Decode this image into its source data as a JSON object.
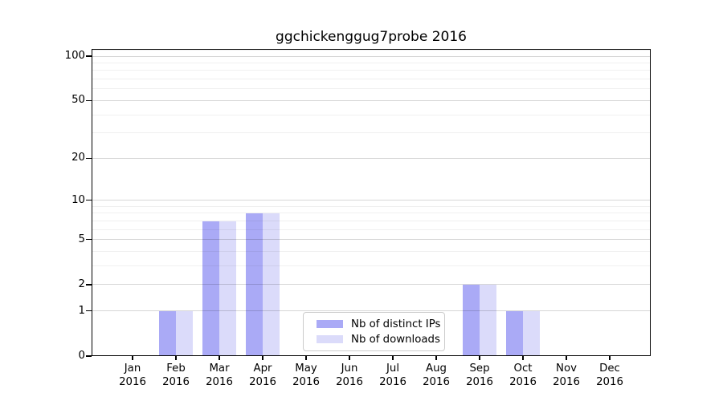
{
  "title": "ggchickenggug7probe 2016",
  "chart_data": {
    "type": "bar",
    "title": "ggchickenggug7probe 2016",
    "categories": [
      "Jan",
      "Feb",
      "Mar",
      "Apr",
      "May",
      "Jun",
      "Jul",
      "Aug",
      "Sep",
      "Oct",
      "Nov",
      "Dec"
    ],
    "year": "2016",
    "series": [
      {
        "name": "Nb of distinct IPs",
        "color": "#aaaaf6",
        "values": [
          0,
          1,
          7,
          8,
          0,
          0,
          0,
          0,
          2,
          1,
          0,
          0
        ]
      },
      {
        "name": "Nb of downloads",
        "color": "#dbdbfa",
        "values": [
          0,
          1,
          7,
          8,
          0,
          0,
          0,
          0,
          2,
          1,
          0,
          0
        ]
      }
    ],
    "xlabel": "",
    "ylabel": "",
    "yscale": "log1p",
    "ylim": [
      0,
      112
    ],
    "yticks": [
      0,
      1,
      2,
      5,
      10,
      20,
      50,
      100
    ],
    "minor_yticks": [
      3,
      4,
      6,
      7,
      8,
      9,
      30,
      40,
      60,
      70,
      80,
      90,
      110
    ],
    "grid": true,
    "legend_position": "lower center"
  },
  "legend": {
    "items": [
      "Nb of distinct IPs",
      "Nb of downloads"
    ]
  }
}
